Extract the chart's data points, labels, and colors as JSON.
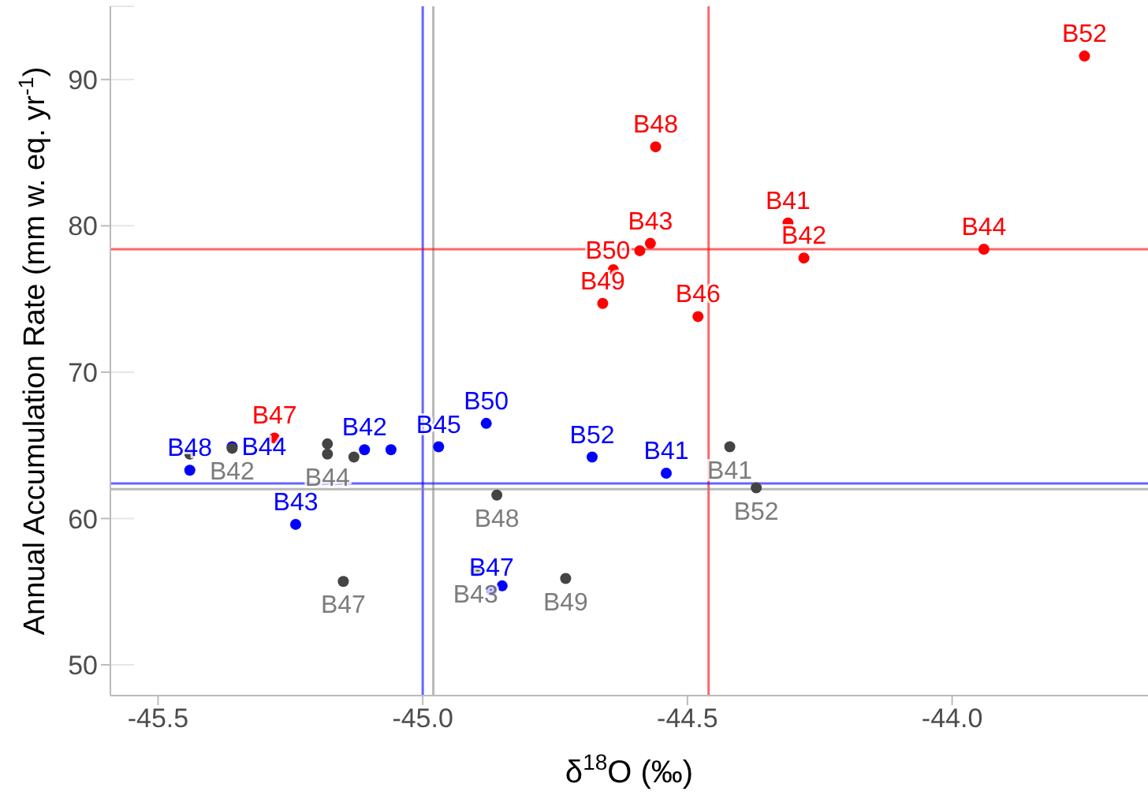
{
  "chart_data": {
    "type": "scatter",
    "xlabel": "δ$^{18}$O (‰)",
    "ylabel": "Annual Accumulation Rate (mm w. eq. yr$^{-1}$)",
    "xlim": [
      -45.59,
      -43.63
    ],
    "ylim": [
      47.9,
      95
    ],
    "xticks": [
      {
        "value": -45.5,
        "label": "-45.5"
      },
      {
        "value": -45,
        "label": "-45.0"
      },
      {
        "value": -44.5,
        "label": "-44.5"
      },
      {
        "value": -44,
        "label": "-44.0"
      }
    ],
    "yticks": [
      50,
      60,
      70,
      80,
      90
    ],
    "grid": true,
    "legend": false,
    "marker": "circle",
    "series": [
      {
        "color": "#ff0000",
        "x": [
          -43.75,
          -44.56,
          -44.31,
          -44.28,
          -43.94,
          -44.57,
          -44.59,
          -44.64,
          -44.66,
          -44.48,
          -45.28
        ],
        "values": [
          91.6,
          85.4,
          80.2,
          77.8,
          78.4,
          78.8,
          78.3,
          77.0,
          74.7,
          73.8,
          65.5
        ],
        "value_labels": [
          "B52",
          "B48",
          "B41",
          "B42",
          "B44",
          "B43",
          "B50",
          null,
          "B49",
          "B46",
          "B47"
        ]
      },
      {
        "color": "#0000ff",
        "x": [
          -45.44,
          -45.36,
          -45.11,
          -45.06,
          -44.97,
          -44.88,
          -44.68,
          -44.54,
          -45.24,
          -44.87,
          -44.85
        ],
        "values": [
          63.3,
          64.9,
          64.7,
          64.7,
          64.9,
          66.5,
          64.2,
          63.1,
          59.6,
          55.1,
          55.4
        ],
        "value_labels": [
          "B48",
          "B44",
          "B42",
          null,
          "B45",
          "B50",
          "B52",
          "B41",
          "B43",
          "B47",
          null
        ]
      },
      {
        "color": "#444444",
        "x": [
          -45.44,
          -45.36,
          -45.18,
          -45.18,
          -45.13,
          -44.86,
          -45.15,
          -44.9,
          -44.73,
          -44.42,
          -44.37
        ],
        "values": [
          64.4,
          64.8,
          65.1,
          64.4,
          64.2,
          61.6,
          55.7,
          56.4,
          55.9,
          64.9,
          62.1
        ],
        "value_labels": [
          null,
          "B42",
          null,
          "B44",
          null,
          "B48",
          "B47",
          "B43",
          "B49",
          "B41",
          "B52"
        ]
      }
    ],
    "ref_lines": [
      {
        "axis": "x",
        "value": -45.0,
        "color": "#0000ff"
      },
      {
        "axis": "x",
        "value": -44.98,
        "color": "#888888"
      },
      {
        "axis": "x",
        "value": -44.46,
        "color": "#ff0000"
      },
      {
        "axis": "y",
        "value": 78.4,
        "color": "#ff0000"
      },
      {
        "axis": "y",
        "value": 62.4,
        "color": "#0000ff"
      },
      {
        "axis": "y",
        "value": 62.0,
        "color": "#888888"
      }
    ]
  }
}
